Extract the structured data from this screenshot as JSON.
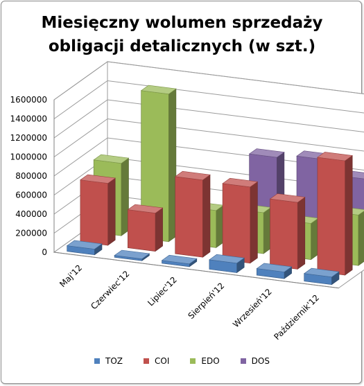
{
  "chart_data": {
    "type": "bar",
    "subtype": "3d-column",
    "title_lines": [
      "Miesięczny wolumen sprzedaży",
      "obligacji detalicznych (w szt.)"
    ],
    "categories": [
      "Maj'12",
      "Czerwiec'12",
      "Lipiec'12",
      "Sierpień'12",
      "Wrzesień'12",
      "Październik'12"
    ],
    "series": [
      {
        "name": "TOZ",
        "color": "#4f81bd",
        "values": [
          60000,
          20000,
          30000,
          100000,
          70000,
          80000
        ]
      },
      {
        "name": "COI",
        "color": "#c0504d",
        "values": [
          650000,
          400000,
          810000,
          800000,
          700000,
          1200000
        ]
      },
      {
        "name": "EDO",
        "color": "#9bbb59",
        "values": [
          760000,
          1550000,
          390000,
          430000,
          380000,
          530000
        ]
      },
      {
        "name": "DOS",
        "color": "#8064a2",
        "values": [
          80000,
          0,
          0,
          910000,
          950000,
          800000
        ]
      }
    ],
    "y_ticks": [
      "0",
      "200000",
      "400000",
      "600000",
      "800000",
      "1000000",
      "1200000",
      "1400000",
      "1600000"
    ],
    "ylim": [
      0,
      1600000
    ],
    "xlabel": "",
    "ylabel": "",
    "grid": true,
    "legend_position": "bottom"
  }
}
